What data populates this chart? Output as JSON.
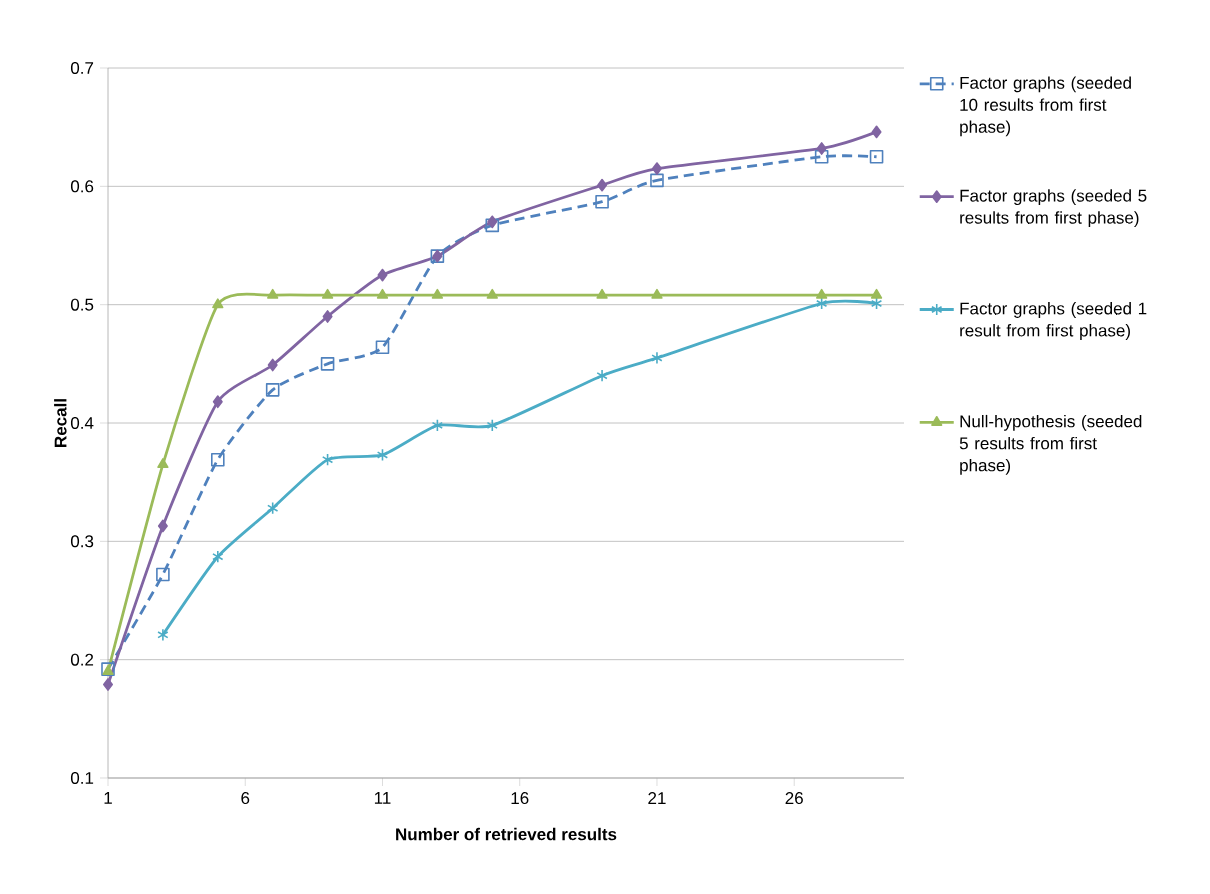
{
  "chart_data": {
    "type": "line",
    "xlabel": "Number of retrieved results",
    "ylabel": "Recall",
    "x": [
      1,
      3,
      5,
      7,
      9,
      11,
      13,
      15,
      19,
      21,
      27,
      29
    ],
    "xlim": [
      1,
      30
    ],
    "xticks": [
      1,
      6,
      11,
      16,
      21,
      26
    ],
    "ylim": [
      0.1,
      0.7
    ],
    "yticks": [
      0.1,
      0.2,
      0.3,
      0.4,
      0.5,
      0.6,
      0.7
    ],
    "grid": "y",
    "legend": "right",
    "series": [
      {
        "name": "Factor graphs (seeded 10 results from first phase)",
        "color": "#4f81bd",
        "marker": "square",
        "line_style": "dashed",
        "values": [
          0.192,
          0.272,
          0.369,
          0.428,
          0.45,
          0.464,
          0.541,
          0.567,
          0.587,
          0.605,
          0.625,
          0.625
        ]
      },
      {
        "name": "Factor graphs (seeded 5 results from first phase)",
        "color": "#8064a2",
        "marker": "diamond",
        "line_style": "solid",
        "values": [
          0.179,
          0.313,
          0.418,
          0.449,
          0.49,
          0.525,
          0.541,
          0.57,
          0.601,
          0.615,
          0.632,
          0.646
        ]
      },
      {
        "name": "Factor graphs (seeded 1 result from first phase)",
        "color": "#4bacc6",
        "marker": "cross",
        "line_style": "solid",
        "values": [
          null,
          0.221,
          0.287,
          0.328,
          0.369,
          0.373,
          0.398,
          0.398,
          0.44,
          0.455,
          0.501,
          0.501
        ]
      },
      {
        "name": "Null-hypothesis (seeded 5 results from first phase)",
        "color": "#9bbb59",
        "marker": "triangle",
        "line_style": "solid",
        "values": [
          0.19,
          0.365,
          0.5,
          0.508,
          0.508,
          0.508,
          0.508,
          0.508,
          0.508,
          0.508,
          0.508,
          0.508
        ]
      }
    ]
  }
}
